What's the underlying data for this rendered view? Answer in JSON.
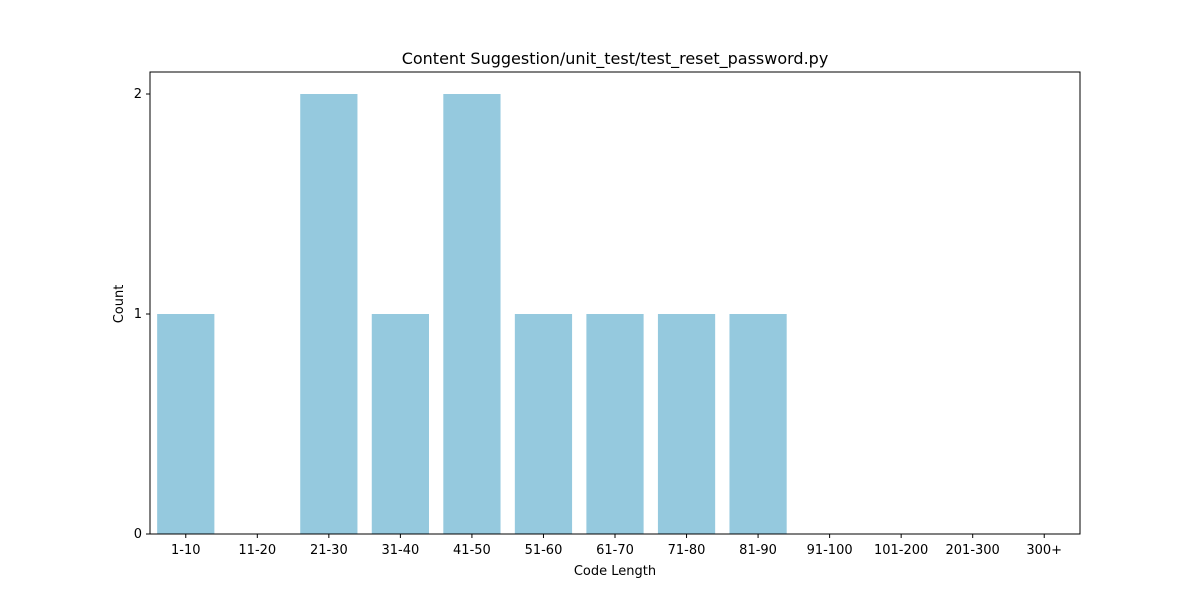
{
  "chart_data": {
    "type": "bar",
    "title": "Content Suggestion/unit_test/test_reset_password.py",
    "xlabel": "Code Length",
    "ylabel": "Count",
    "categories": [
      "1-10",
      "11-20",
      "21-30",
      "31-40",
      "41-50",
      "51-60",
      "61-70",
      "71-80",
      "81-90",
      "91-100",
      "101-200",
      "201-300",
      "300+"
    ],
    "values": [
      1,
      0,
      2,
      1,
      2,
      1,
      1,
      1,
      1,
      0,
      0,
      0,
      0
    ],
    "ylim": [
      0,
      2.1
    ],
    "yticks": [
      0,
      1,
      2
    ],
    "bar_color": "#95c9de",
    "grid": false,
    "legend": "none"
  }
}
